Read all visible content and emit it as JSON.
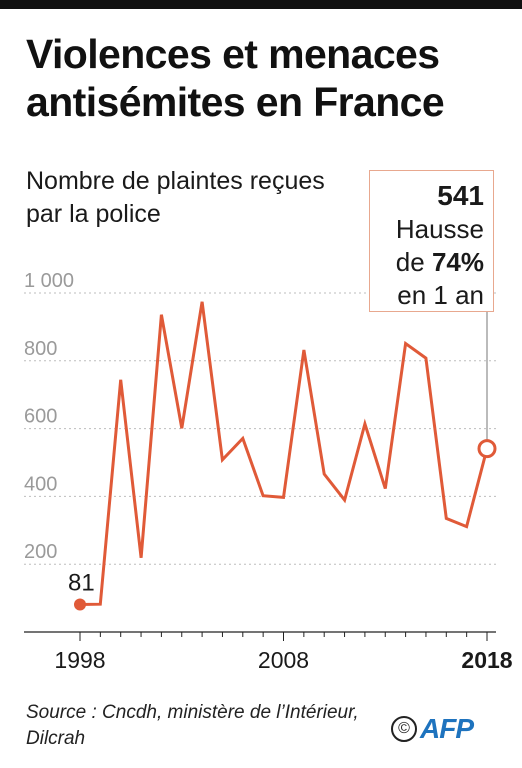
{
  "title": "Violences et menaces antisémites en France",
  "subtitle": "Nombre de plaintes reçues par la police",
  "callout": {
    "value": "541",
    "line1": "Hausse",
    "line2_prefix": "de ",
    "line2_bold": "74%",
    "line3": "en 1 an"
  },
  "source": "Source : Cncdh, ministère de l’Intérieur, Dilcrah",
  "copyright_symbol": "©",
  "agency": "AFP",
  "colors": {
    "line": "#e05a38",
    "grid": "#bdbdbd",
    "callout_border": "#e8a88f",
    "agency": "#1e73be"
  },
  "chart_data": {
    "type": "line",
    "title": "Violences et menaces antisémites en France",
    "subtitle": "Nombre de plaintes reçues par la police",
    "ylim": [
      0,
      1000
    ],
    "yticks": [
      200,
      400,
      600,
      800,
      1000
    ],
    "ytick_labels": [
      "200",
      "400",
      "600",
      "800",
      "1 000"
    ],
    "xlim": [
      1998,
      2018
    ],
    "xtick_labels": [
      "1998",
      "2008",
      "2018"
    ],
    "x": [
      1998,
      1999,
      2000,
      2001,
      2002,
      2003,
      2004,
      2005,
      2006,
      2007,
      2008,
      2009,
      2010,
      2011,
      2012,
      2013,
      2014,
      2015,
      2016,
      2017,
      2018
    ],
    "series": [
      {
        "values": [
          81,
          82,
          744,
          219,
          936,
          601,
          974,
          508,
          571,
          402,
          397,
          832,
          466,
          389,
          614,
          423,
          851,
          808,
          335,
          311,
          541
        ]
      }
    ],
    "annotations": [
      {
        "x": 1998,
        "label": "81"
      },
      {
        "x": 2018,
        "label": "541"
      }
    ],
    "grid": true
  }
}
